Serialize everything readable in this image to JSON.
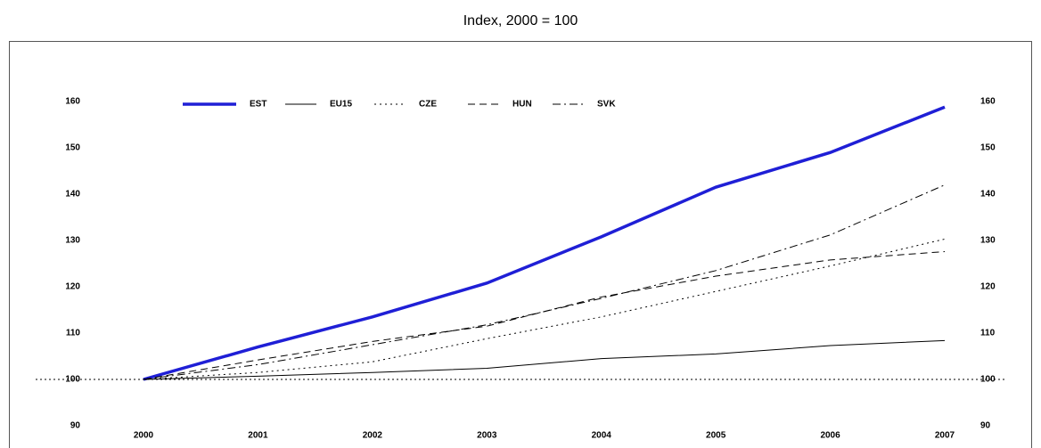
{
  "chart_data": {
    "type": "line",
    "title": "Index, 2000 = 100",
    "categories": [
      "2000",
      "2001",
      "2002",
      "2003",
      "2004",
      "2005",
      "2006",
      "2007"
    ],
    "series": [
      {
        "name": "EST",
        "color": "#1f1fd6",
        "line_style": "thick",
        "values": [
          100,
          107,
          113.5,
          120.8,
          130.8,
          141.5,
          149,
          158.8
        ]
      },
      {
        "name": "EU15",
        "color": "#000000",
        "line_style": "solid",
        "values": [
          100,
          100.7,
          101.5,
          102.4,
          104.5,
          105.5,
          107.3,
          108.4
        ]
      },
      {
        "name": "CZE",
        "color": "#000000",
        "line_style": "dotted",
        "values": [
          100,
          101.5,
          103.8,
          108.8,
          113.5,
          119,
          124.5,
          130.3
        ]
      },
      {
        "name": "HUN",
        "color": "#000000",
        "line_style": "dashed",
        "values": [
          100,
          104.2,
          108.2,
          111.5,
          117.8,
          122.3,
          125.8,
          127.6
        ]
      },
      {
        "name": "SVK",
        "color": "#000000",
        "line_style": "dashdot",
        "values": [
          100,
          103.2,
          107.5,
          111.8,
          117.5,
          123.5,
          131.2,
          142
        ]
      }
    ],
    "reference_line": 100,
    "ylim": [
      90,
      160
    ],
    "yticks": [
      90,
      100,
      110,
      120,
      130,
      140,
      150,
      160
    ],
    "right_axis": true,
    "legend": "top"
  }
}
